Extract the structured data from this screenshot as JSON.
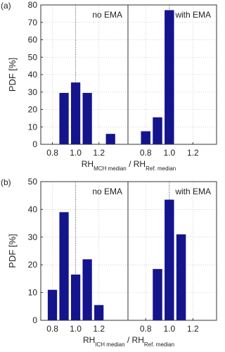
{
  "chart_data": [
    {
      "type": "bar",
      "panel_label": "(a)",
      "ylabel": "PDF [%]",
      "xlabel": [
        "RH",
        "MCH median",
        " / RH",
        "Ref. median"
      ],
      "ylim": [
        0,
        80
      ],
      "yticks": [
        0,
        10,
        20,
        30,
        40,
        50,
        60,
        70,
        80
      ],
      "color": "#14148c",
      "grid": true,
      "subplots": [
        {
          "title": "no EMA",
          "xlim": [
            0.7,
            1.45
          ],
          "xticks": [
            0.8,
            {
              "value": 1,
              "label": "1.0"
            },
            1.2
          ],
          "vline": 1,
          "x": [
            0.9,
            1.0,
            1.1,
            1.3
          ],
          "values": [
            29.5,
            35.5,
            29.5,
            6
          ]
        },
        {
          "title": "with EMA",
          "xlim": [
            0.65,
            1.4
          ],
          "xticks": [
            0.8,
            {
              "value": 1,
              "label": "1.0"
            },
            1.2
          ],
          "vline": 1,
          "x": [
            0.8,
            0.9,
            1.0
          ],
          "values": [
            7.5,
            15.5,
            77
          ]
        }
      ]
    },
    {
      "type": "bar",
      "panel_label": "(b)",
      "ylabel": "PDF [%]",
      "xlabel": [
        "RH",
        "ICH median",
        " / RH",
        "Ref. median"
      ],
      "ylim": [
        0,
        50
      ],
      "yticks": [
        0,
        10,
        20,
        30,
        40,
        50
      ],
      "color": "#14148c",
      "grid": true,
      "subplots": [
        {
          "title": "no EMA",
          "xlim": [
            0.7,
            1.45
          ],
          "xticks": [
            0.8,
            {
              "value": 1,
              "label": "1.0"
            },
            1.2
          ],
          "vline": 1,
          "x": [
            0.8,
            0.9,
            1.0,
            1.1,
            1.2
          ],
          "values": [
            11,
            39,
            16.5,
            22,
            5.5
          ]
        },
        {
          "title": "with EMA",
          "xlim": [
            0.65,
            1.4
          ],
          "xticks": [
            0.8,
            {
              "value": 1,
              "label": "1.0"
            },
            1.2
          ],
          "vline": 1,
          "x": [
            0.9,
            1.0,
            1.1
          ],
          "values": [
            18.5,
            43.5,
            31
          ]
        }
      ]
    }
  ]
}
